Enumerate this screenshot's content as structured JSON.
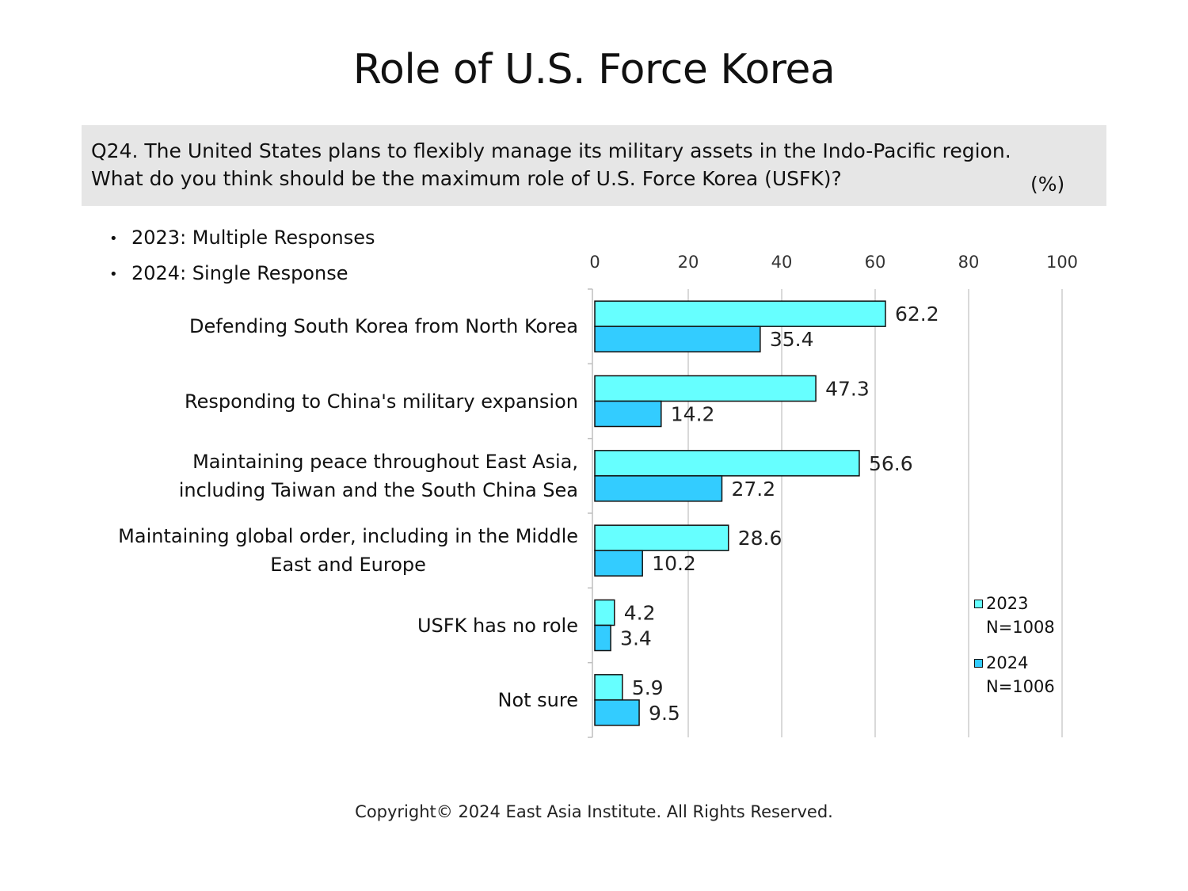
{
  "title": "Role of U.S. Force Korea",
  "question": {
    "line1": "Q24. The United States plans to flexibly manage its military assets in the Indo-Pacific region.",
    "line2": "What do you think should be the maximum role of U.S. Force Korea (USFK)?",
    "unit": "(%)"
  },
  "notes": [
    "2023: Multiple Responses",
    "2024: Single Response"
  ],
  "bullet": "•",
  "copyright": "Copyright© 2024 East Asia Institute. All Rights Reserved.",
  "legend": [
    {
      "label": "2023",
      "sublabel": "N=1008",
      "color": "#66ffff"
    },
    {
      "label": "2024",
      "sublabel": "N=1006",
      "color": "#33ccff"
    }
  ],
  "chart_data": {
    "type": "bar",
    "orientation": "horizontal",
    "title": "Role of U.S. Force Korea",
    "categories": [
      [
        "Defending South Korea from North Korea"
      ],
      [
        "Responding to China's military expansion"
      ],
      [
        "Maintaining peace throughout East Asia,",
        "including Taiwan and the South China Sea"
      ],
      [
        "Maintaining global order, including in the Middle",
        "East and Europe"
      ],
      [
        "USFK has no role"
      ],
      [
        "Not sure"
      ]
    ],
    "series": [
      {
        "name": "2023",
        "values": [
          62.2,
          47.3,
          56.6,
          28.6,
          4.2,
          5.9
        ],
        "color": "#66ffff"
      },
      {
        "name": "2024",
        "values": [
          35.4,
          14.2,
          27.2,
          10.2,
          3.4,
          9.5
        ],
        "color": "#33ccff"
      }
    ],
    "xlim": [
      0,
      100
    ],
    "xticks": [
      0,
      20,
      40,
      60,
      80,
      100
    ],
    "axis_position": "top",
    "grid": true,
    "legend_position": "bottom-right",
    "unit": "(%)"
  }
}
